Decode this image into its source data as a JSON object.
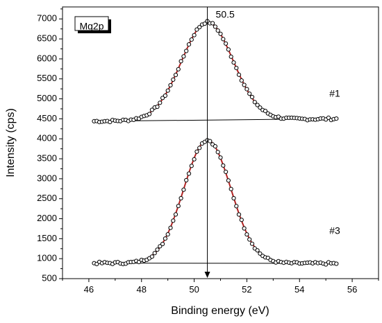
{
  "chart_data": {
    "type": "line",
    "title": "",
    "legend_label": "Mg2p",
    "xlabel": "Binding energy (eV)",
    "ylabel": "Intensity (cps)",
    "xlim": [
      45,
      57
    ],
    "ylim": [
      500,
      7300
    ],
    "xticks": [
      46,
      48,
      50,
      52,
      54,
      56
    ],
    "yticks": [
      500,
      1000,
      1500,
      2000,
      2500,
      3000,
      3500,
      4000,
      4500,
      5000,
      5500,
      6000,
      6500,
      7000
    ],
    "grid": false,
    "vertical_marker": {
      "x": 50.5,
      "label": "50.5"
    },
    "colors": {
      "fit": "#b22222",
      "points": "#000000",
      "axis": "#000000"
    },
    "series": [
      {
        "name": "#1",
        "x_range": [
          46.2,
          55.4
        ],
        "peak_center": 50.5,
        "peak_height": 2450,
        "fwhm": 2.3,
        "baseline": [
          [
            46.2,
            4440
          ],
          [
            55.4,
            4500
          ]
        ]
      },
      {
        "name": "#3",
        "x_range": [
          46.2,
          55.4
        ],
        "peak_center": 50.5,
        "peak_height": 3080,
        "fwhm": 2.1,
        "baseline": [
          [
            46.2,
            890
          ],
          [
            55.4,
            880
          ]
        ]
      }
    ]
  }
}
